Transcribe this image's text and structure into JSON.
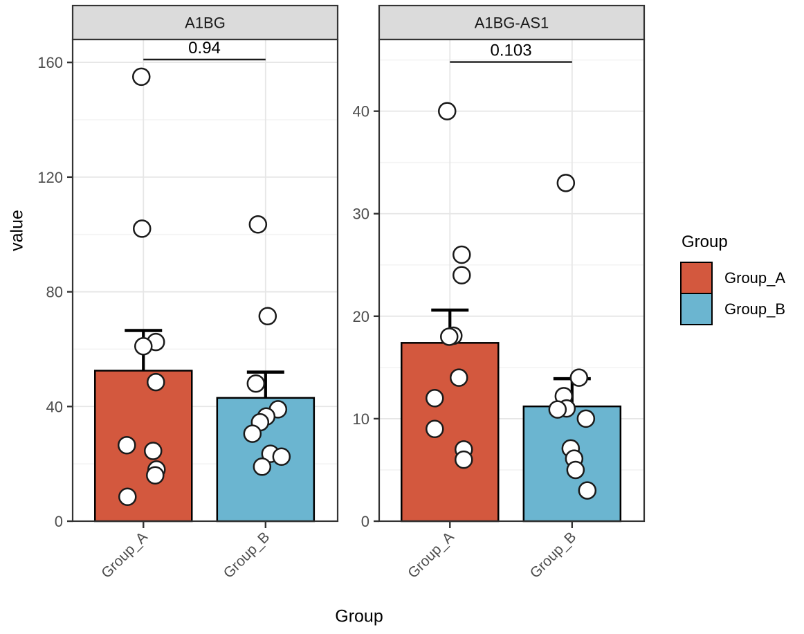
{
  "figure": {
    "y_axis_title": "value",
    "x_axis_title": "Group"
  },
  "legend": {
    "title": "Group",
    "items": [
      {
        "label": "Group_A",
        "color": "#D3583E"
      },
      {
        "label": "Group_B",
        "color": "#6BB5D0"
      }
    ]
  },
  "style": {
    "strip_bg": "#DBDBDB",
    "panel_border": "#333333",
    "grid_major": "#E6E6E6",
    "grid_minor": "#F3F3F3",
    "tick_color": "#333333",
    "tick_text_color": "#4D4D4D",
    "point_fill": "#FFFFFF",
    "point_stroke": "#1A1A1A",
    "bar_stroke": "#000000",
    "bracket_color": "#1A1A1A"
  },
  "chart_data": {
    "type": "bar",
    "subtype": "faceted ggplot-style bar chart with SEM error bars and jittered points",
    "categories": [
      "Group_A",
      "Group_B"
    ],
    "xlabel": "Group",
    "ylabel": "value",
    "legend_title": "Group",
    "legend_position": "right",
    "grid": true,
    "facets": [
      {
        "title": "A1BG",
        "p_value": "0.94",
        "ylim": [
          0,
          168
        ],
        "yticks_major": [
          0,
          40,
          80,
          120,
          160
        ],
        "yticks_minor": [
          20,
          60,
          100,
          140
        ],
        "bracket_y": 161,
        "series": [
          {
            "name": "Group_A",
            "color": "#D3583E",
            "mean": 52.5,
            "sem_top": 66.5,
            "points": [
              155,
              102,
              62.5,
              61,
              48.5,
              26.5,
              24.5,
              18,
              16,
              8.5
            ],
            "jitter": [
              -3,
              -2,
              18,
              0,
              18,
              -24,
              14,
              19,
              17,
              -23
            ]
          },
          {
            "name": "Group_B",
            "color": "#6BB5D0",
            "mean": 43,
            "sem_top": 52,
            "points": [
              103.5,
              71.5,
              48,
              39,
              36.5,
              34.5,
              30.5,
              23.5,
              22.5,
              19
            ],
            "jitter": [
              -11,
              3,
              -14,
              18,
              1,
              -8,
              -19,
              7,
              23,
              -5
            ]
          }
        ]
      },
      {
        "title": "A1BG-AS1",
        "p_value": "0.103",
        "ylim": [
          0,
          47
        ],
        "yticks_major": [
          0,
          10,
          20,
          30,
          40
        ],
        "yticks_minor": [
          5,
          15,
          25,
          35,
          45
        ],
        "bracket_y": 44.8,
        "series": [
          {
            "name": "Group_A",
            "color": "#D3583E",
            "mean": 17.4,
            "sem_top": 20.6,
            "points": [
              40,
              26,
              24,
              18.1,
              18,
              14,
              12,
              9,
              7,
              6
            ],
            "jitter": [
              -4,
              17,
              17,
              5,
              -1,
              13,
              -22,
              -22,
              20,
              20
            ]
          },
          {
            "name": "Group_B",
            "color": "#6BB5D0",
            "mean": 11.2,
            "sem_top": 13.9,
            "points": [
              33,
              14,
              12.2,
              11,
              10.9,
              10,
              7.1,
              6.1,
              5,
              3
            ],
            "jitter": [
              -9,
              10,
              -12,
              -8,
              -21,
              20,
              -2,
              3,
              5,
              22
            ]
          }
        ]
      }
    ]
  }
}
